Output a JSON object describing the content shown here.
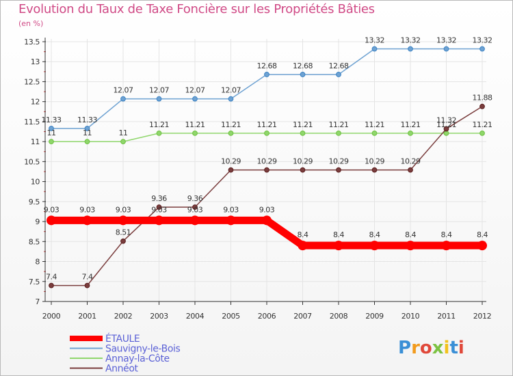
{
  "title": "Evolution du Taux de Taxe Foncière sur les Propriétés Bâties",
  "unit": "(en %)",
  "chart_data": {
    "type": "line",
    "title": "Evolution du Taux de Taxe Foncière sur les Propriétés Bâties",
    "ylabel": "(en %)",
    "xlabel": "",
    "categories": [
      "2000",
      "2001",
      "2002",
      "2003",
      "2004",
      "2005",
      "2006",
      "2007",
      "2008",
      "2009",
      "2010",
      "2011",
      "2012"
    ],
    "ylim": [
      7,
      13.5
    ],
    "yticks": [
      7,
      7.5,
      8,
      8.5,
      9,
      9.5,
      10,
      10.5,
      11,
      11.5,
      12,
      12.5,
      13,
      13.5
    ],
    "legend_position": "bottom-left",
    "series": [
      {
        "name": "ÉTAULE",
        "color": "#ff0000",
        "values": [
          9.03,
          9.03,
          9.03,
          9.03,
          9.03,
          9.03,
          9.03,
          8.4,
          8.4,
          8.4,
          8.4,
          8.4,
          8.4
        ]
      },
      {
        "name": "Sauvigny-le-Bois",
        "color": "#6ea2d2",
        "values": [
          11.33,
          11.33,
          12.07,
          12.07,
          12.07,
          12.07,
          12.68,
          12.68,
          12.68,
          13.32,
          13.32,
          13.32,
          13.32
        ]
      },
      {
        "name": "Annay-la-Côte",
        "color": "#8fd66b",
        "values": [
          11,
          11,
          11,
          11.21,
          11.21,
          11.21,
          11.21,
          11.21,
          11.21,
          11.21,
          11.21,
          11.21,
          11.21
        ]
      },
      {
        "name": "Annéot",
        "color": "#7a3d3d",
        "values": [
          7.4,
          7.4,
          8.51,
          9.36,
          9.36,
          10.29,
          10.29,
          10.29,
          10.29,
          10.29,
          10.29,
          11.32,
          11.88
        ]
      }
    ],
    "data_labels": {
      "ÉTAULE": [
        "9.03",
        "9.03",
        "9.03",
        "9.03",
        "9.03",
        "9.03",
        "9.03",
        "8.4",
        "8.4",
        "8.4",
        "8.4",
        "8.4",
        "8.4"
      ],
      "Sauvigny-le-Bois": [
        "11.33",
        "11.33",
        "12.07",
        "12.07",
        "12.07",
        "12.07",
        "12.68",
        "12.68",
        "12.68",
        "13.32",
        "13.32",
        "13.32",
        "13.32"
      ],
      "Annay-la-Côte": [
        "11",
        "11",
        "11",
        "11.21",
        "11.21",
        "11.21",
        "11.21",
        "11.21",
        "11.21",
        "11.21",
        "11.21",
        "11.21",
        "11.21"
      ],
      "Annéot": [
        "7.4",
        "7.4",
        "8.51",
        "9.36",
        "9.36",
        "10.29",
        "10.29",
        "10.29",
        "10.29",
        "10.29",
        "10.29",
        "11.32",
        "11.88"
      ]
    }
  },
  "logo": {
    "text": "Proxiti",
    "colors": [
      "#3a8fd6",
      "#f29b1d",
      "#e0483a",
      "#7cc242",
      "#f2c21d",
      "#3a8fd6",
      "#e0483a"
    ]
  }
}
